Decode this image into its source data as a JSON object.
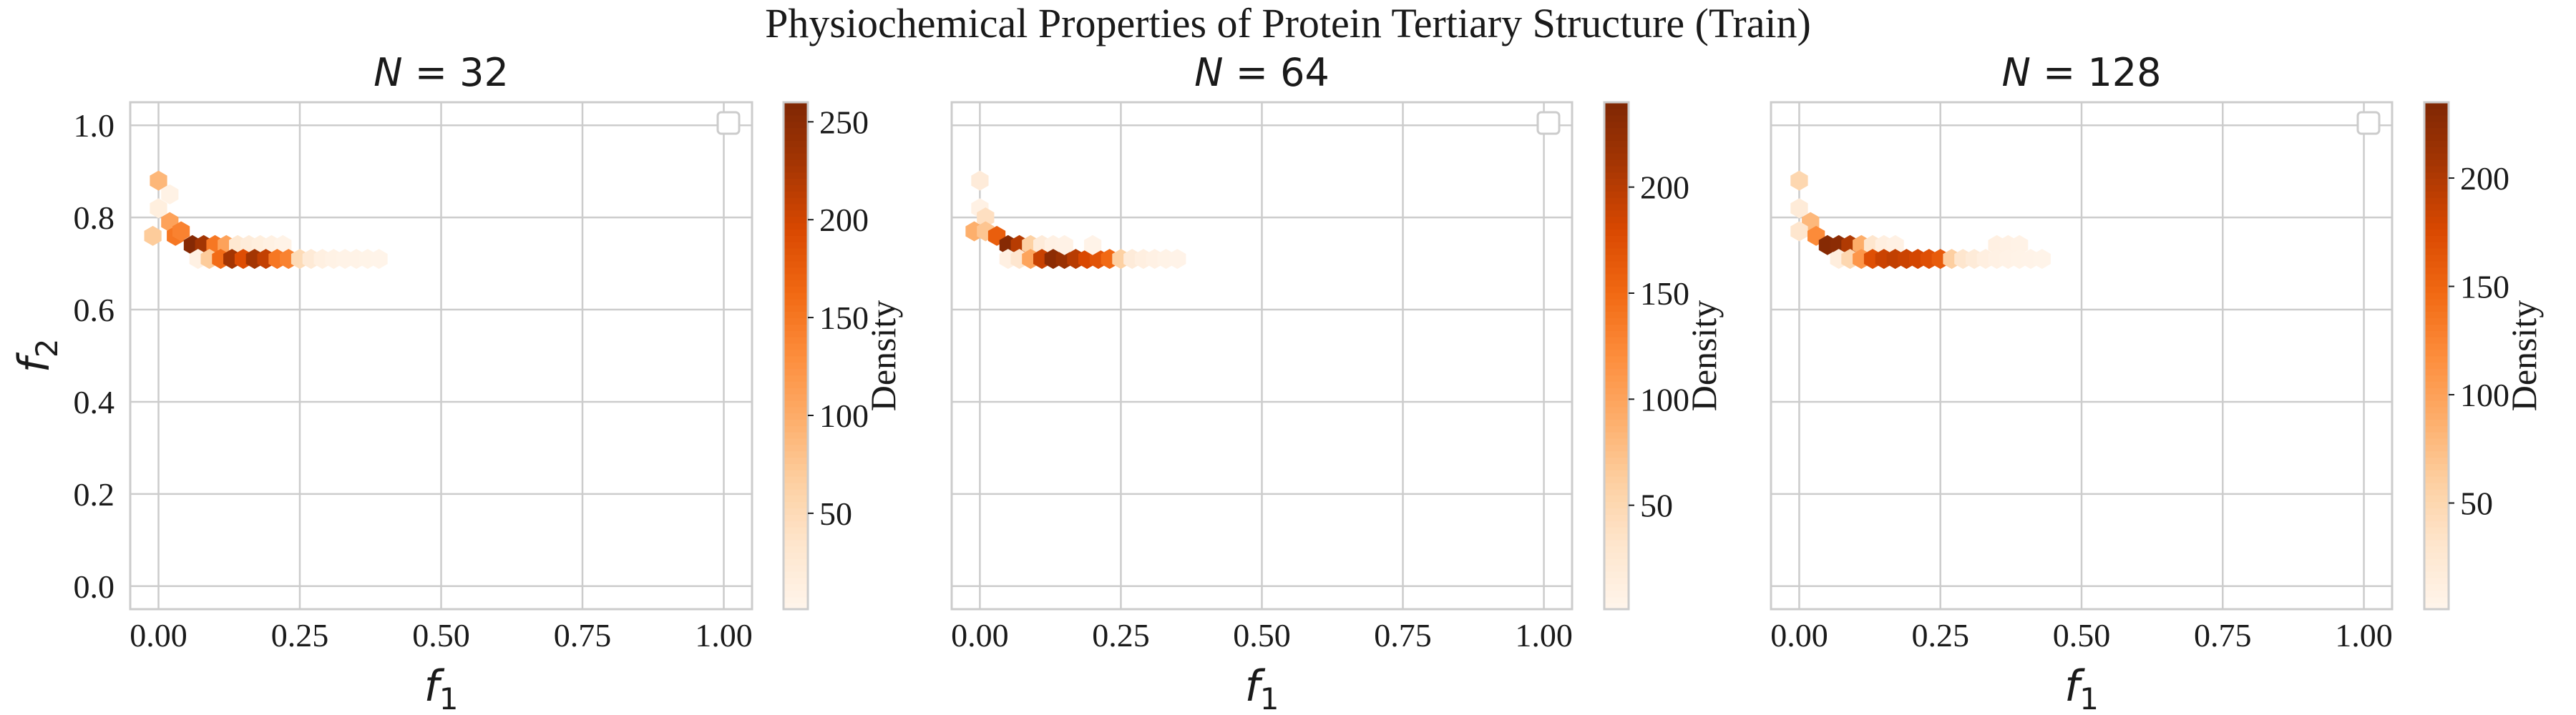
{
  "figure": {
    "suptitle": "Physiochemical Properties of Protein Tertiary Structure (Train)"
  },
  "colors": {
    "grid": "#cccccc",
    "frame": "#cccccc",
    "text": "#1a1a1a",
    "cmap": [
      "#fff5eb",
      "#fee6ce",
      "#fdd0a2",
      "#fdae6b",
      "#fd8d3c",
      "#f16913",
      "#d94801",
      "#a63603",
      "#7f2704"
    ]
  },
  "chart_data": [
    {
      "type": "heatmap",
      "subtype": "hexbin",
      "title_prefix": "N = ",
      "title_value": "32",
      "xlabel_base": "f",
      "xlabel_sub": "1",
      "ylabel_base": "f",
      "ylabel_sub": "2",
      "xlim": [
        -0.05,
        1.05
      ],
      "ylim": [
        -0.05,
        1.05
      ],
      "xticks": [
        0.0,
        0.25,
        0.5,
        0.75,
        1.0
      ],
      "xtick_labels": [
        "0.00",
        "0.25",
        "0.50",
        "0.75",
        "1.00"
      ],
      "yticks": [
        0.0,
        0.2,
        0.4,
        0.6,
        0.8,
        1.0
      ],
      "ytick_labels": [
        "0.0",
        "0.2",
        "0.4",
        "0.6",
        "0.8",
        "1.0"
      ],
      "show_yticklabels": true,
      "grid": true,
      "legend": "top-right",
      "colorbar": {
        "label": "Density",
        "vmin": 1,
        "vmax": 260,
        "ticks": [
          50,
          100,
          150,
          200,
          250
        ],
        "tick_labels": [
          "50",
          "100",
          "150",
          "200",
          "250"
        ]
      },
      "bins": [
        [
          0.0,
          0.88,
          90
        ],
        [
          0.0,
          0.82,
          15
        ],
        [
          0.02,
          0.85,
          8
        ],
        [
          -0.01,
          0.76,
          70
        ],
        [
          0.02,
          0.79,
          110
        ],
        [
          0.03,
          0.76,
          150
        ],
        [
          0.04,
          0.77,
          140
        ],
        [
          0.06,
          0.74,
          255
        ],
        [
          0.08,
          0.74,
          230
        ],
        [
          0.1,
          0.74,
          150
        ],
        [
          0.12,
          0.74,
          110
        ],
        [
          0.14,
          0.74,
          30
        ],
        [
          0.16,
          0.74,
          20
        ],
        [
          0.18,
          0.74,
          15
        ],
        [
          0.2,
          0.74,
          10
        ],
        [
          0.22,
          0.74,
          6
        ],
        [
          0.07,
          0.71,
          10
        ],
        [
          0.09,
          0.71,
          70
        ],
        [
          0.11,
          0.71,
          160
        ],
        [
          0.13,
          0.71,
          230
        ],
        [
          0.15,
          0.71,
          190
        ],
        [
          0.17,
          0.71,
          230
        ],
        [
          0.19,
          0.71,
          210
        ],
        [
          0.21,
          0.71,
          150
        ],
        [
          0.23,
          0.71,
          140
        ],
        [
          0.25,
          0.71,
          50
        ],
        [
          0.27,
          0.71,
          25
        ],
        [
          0.29,
          0.71,
          12
        ],
        [
          0.31,
          0.71,
          8
        ],
        [
          0.33,
          0.71,
          6
        ],
        [
          0.35,
          0.71,
          5
        ],
        [
          0.37,
          0.71,
          4
        ],
        [
          0.39,
          0.71,
          3
        ]
      ]
    },
    {
      "type": "heatmap",
      "subtype": "hexbin",
      "title_prefix": "N = ",
      "title_value": "64",
      "xlabel_base": "f",
      "xlabel_sub": "1",
      "xlim": [
        -0.05,
        1.05
      ],
      "ylim": [
        -0.05,
        1.05
      ],
      "xticks": [
        0.0,
        0.25,
        0.5,
        0.75,
        1.0
      ],
      "xtick_labels": [
        "0.00",
        "0.25",
        "0.50",
        "0.75",
        "1.00"
      ],
      "yticks": [
        0.0,
        0.2,
        0.4,
        0.6,
        0.8,
        1.0
      ],
      "show_yticklabels": false,
      "grid": true,
      "legend": "top-right",
      "colorbar": {
        "label": "Density",
        "vmin": 1,
        "vmax": 240,
        "ticks": [
          50,
          100,
          150,
          200
        ],
        "tick_labels": [
          "50",
          "100",
          "150",
          "200"
        ]
      },
      "bins": [
        [
          0.0,
          0.88,
          20
        ],
        [
          0.0,
          0.82,
          8
        ],
        [
          0.01,
          0.8,
          40
        ],
        [
          -0.01,
          0.77,
          90
        ],
        [
          0.01,
          0.77,
          70
        ],
        [
          0.03,
          0.76,
          160
        ],
        [
          0.05,
          0.74,
          235
        ],
        [
          0.07,
          0.74,
          200
        ],
        [
          0.09,
          0.74,
          60
        ],
        [
          0.11,
          0.74,
          20
        ],
        [
          0.13,
          0.74,
          8
        ],
        [
          0.05,
          0.71,
          10
        ],
        [
          0.07,
          0.71,
          30
        ],
        [
          0.09,
          0.71,
          100
        ],
        [
          0.11,
          0.71,
          190
        ],
        [
          0.13,
          0.71,
          230
        ],
        [
          0.15,
          0.71,
          220
        ],
        [
          0.17,
          0.71,
          200
        ],
        [
          0.19,
          0.71,
          180
        ],
        [
          0.21,
          0.71,
          170
        ],
        [
          0.23,
          0.71,
          150
        ],
        [
          0.25,
          0.71,
          60
        ],
        [
          0.27,
          0.71,
          20
        ],
        [
          0.29,
          0.71,
          12
        ],
        [
          0.31,
          0.71,
          8
        ],
        [
          0.33,
          0.71,
          5
        ],
        [
          0.35,
          0.71,
          4
        ],
        [
          0.15,
          0.74,
          6
        ],
        [
          0.2,
          0.74,
          4
        ]
      ]
    },
    {
      "type": "heatmap",
      "subtype": "hexbin",
      "title_prefix": "N = ",
      "title_value": "128",
      "xlabel_base": "f",
      "xlabel_sub": "1",
      "xlim": [
        -0.05,
        1.05
      ],
      "ylim": [
        -0.05,
        1.05
      ],
      "xticks": [
        0.0,
        0.25,
        0.5,
        0.75,
        1.0
      ],
      "xtick_labels": [
        "0.00",
        "0.25",
        "0.50",
        "0.75",
        "1.00"
      ],
      "yticks": [
        0.0,
        0.2,
        0.4,
        0.6,
        0.8,
        1.0
      ],
      "show_yticklabels": false,
      "grid": true,
      "legend": "top-right",
      "colorbar": {
        "label": "Density",
        "vmin": 1,
        "vmax": 235,
        "ticks": [
          50,
          100,
          150,
          200
        ],
        "tick_labels": [
          "50",
          "100",
          "150",
          "200"
        ]
      },
      "bins": [
        [
          0.0,
          0.88,
          50
        ],
        [
          0.0,
          0.82,
          20
        ],
        [
          0.02,
          0.79,
          80
        ],
        [
          0.0,
          0.77,
          30
        ],
        [
          0.03,
          0.76,
          120
        ],
        [
          0.05,
          0.74,
          230
        ],
        [
          0.07,
          0.74,
          225
        ],
        [
          0.09,
          0.74,
          200
        ],
        [
          0.11,
          0.74,
          90
        ],
        [
          0.13,
          0.74,
          30
        ],
        [
          0.15,
          0.74,
          12
        ],
        [
          0.17,
          0.74,
          8
        ],
        [
          0.35,
          0.74,
          10
        ],
        [
          0.37,
          0.74,
          8
        ],
        [
          0.39,
          0.74,
          6
        ],
        [
          0.07,
          0.71,
          15
        ],
        [
          0.09,
          0.71,
          50
        ],
        [
          0.11,
          0.71,
          110
        ],
        [
          0.13,
          0.71,
          170
        ],
        [
          0.15,
          0.71,
          185
        ],
        [
          0.17,
          0.71,
          190
        ],
        [
          0.19,
          0.71,
          185
        ],
        [
          0.21,
          0.71,
          180
        ],
        [
          0.23,
          0.71,
          170
        ],
        [
          0.25,
          0.71,
          160
        ],
        [
          0.27,
          0.71,
          60
        ],
        [
          0.29,
          0.71,
          30
        ],
        [
          0.31,
          0.71,
          20
        ],
        [
          0.33,
          0.71,
          12
        ],
        [
          0.35,
          0.71,
          8
        ],
        [
          0.37,
          0.71,
          6
        ],
        [
          0.39,
          0.71,
          5
        ],
        [
          0.41,
          0.71,
          4
        ],
        [
          0.43,
          0.71,
          3
        ]
      ]
    }
  ]
}
